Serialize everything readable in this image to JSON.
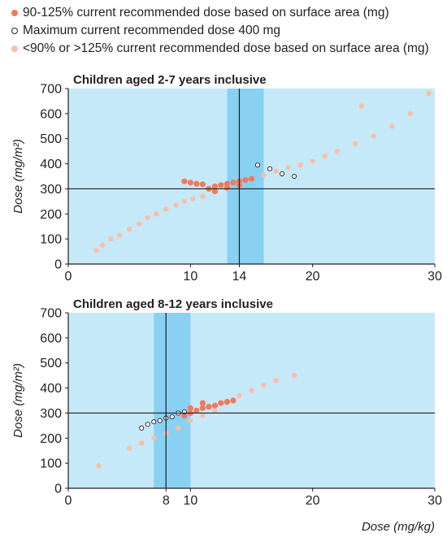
{
  "legend": [
    {
      "label": "90-125% current recommended dose based on surface area (mg)",
      "color": "#f4785a",
      "style": "filled-dark"
    },
    {
      "label": "Maximum current recommended dose 400 mg",
      "color": "#ffffff",
      "style": "open"
    },
    {
      "label": "<90% or >125% current recommended dose based on surface area (mg)",
      "color": "#f9bfa8",
      "style": "filled-light"
    }
  ],
  "colors": {
    "plot_bg": "#c6e9f9",
    "band": "#88d1f3",
    "in_range": "#f4785a",
    "out_range": "#f9bfa8",
    "max_dose": "#ffffff",
    "axis": "#231f20"
  },
  "chart_data": [
    {
      "type": "scatter",
      "title": "Children aged 2-7 years inclusive",
      "xlabel": "",
      "ylabel": "Dose (mg/m²)",
      "xlim": [
        0,
        30
      ],
      "ylim": [
        0,
        700
      ],
      "xticks": [
        0,
        10,
        14,
        20,
        30
      ],
      "yticks": [
        0,
        100,
        200,
        300,
        400,
        500,
        600,
        700
      ],
      "grid": false,
      "band_x": [
        13,
        16
      ],
      "ref_x": 14,
      "ref_y": 300,
      "series": [
        {
          "name": "<90% or >125% current recommended dose based on surface area (mg)",
          "points": [
            [
              2.3,
              55
            ],
            [
              2.8,
              75
            ],
            [
              3.5,
              100
            ],
            [
              4.2,
              115
            ],
            [
              5.0,
              140
            ],
            [
              5.8,
              160
            ],
            [
              6.5,
              185
            ],
            [
              7.2,
              200
            ],
            [
              8.0,
              220
            ],
            [
              8.8,
              235
            ],
            [
              9.5,
              250
            ],
            [
              10.2,
              260
            ],
            [
              11.0,
              270
            ],
            [
              12.0,
              290
            ],
            [
              13.0,
              300
            ],
            [
              14.0,
              320
            ],
            [
              15.0,
              340
            ],
            [
              16.0,
              355
            ],
            [
              17.0,
              370
            ],
            [
              18.0,
              385
            ],
            [
              19.0,
              395
            ],
            [
              20.0,
              410
            ],
            [
              21.0,
              430
            ],
            [
              22.0,
              450
            ],
            [
              23.5,
              480
            ],
            [
              25.0,
              510
            ],
            [
              26.5,
              550
            ],
            [
              28.0,
              600
            ],
            [
              29.5,
              680
            ],
            [
              24.0,
              630
            ]
          ]
        },
        {
          "name": "90-125% current recommended dose based on surface area (mg)",
          "points": [
            [
              9.5,
              330
            ],
            [
              10.0,
              325
            ],
            [
              10.5,
              320
            ],
            [
              11.0,
              318
            ],
            [
              11.5,
              300
            ],
            [
              12.0,
              310
            ],
            [
              12.5,
              315
            ],
            [
              13.0,
              320
            ],
            [
              13.5,
              325
            ],
            [
              14.0,
              330
            ],
            [
              14.5,
              335
            ],
            [
              15.0,
              340
            ],
            [
              12.0,
              290
            ],
            [
              13.0,
              305
            ],
            [
              14.0,
              315
            ]
          ]
        },
        {
          "name": "Maximum current recommended dose 400 mg",
          "points": [
            [
              15.5,
              395
            ],
            [
              16.5,
              380
            ],
            [
              17.5,
              360
            ],
            [
              18.5,
              350
            ]
          ]
        }
      ]
    },
    {
      "type": "scatter",
      "title": "Children aged 8-12 years inclusive",
      "xlabel": "Dose (mg/kg)",
      "ylabel": "Dose (mg/m²)",
      "xlim": [
        0,
        30
      ],
      "ylim": [
        0,
        700
      ],
      "xticks": [
        0,
        8,
        10,
        20,
        30
      ],
      "yticks": [
        0,
        100,
        200,
        300,
        400,
        500,
        600,
        700
      ],
      "grid": false,
      "band_x": [
        7,
        10
      ],
      "ref_x": 8,
      "ref_y": 300,
      "series": [
        {
          "name": "<90% or >125% current recommended dose based on surface area (mg)",
          "points": [
            [
              2.5,
              90
            ],
            [
              5.0,
              160
            ],
            [
              6.0,
              180
            ],
            [
              7.0,
              200
            ],
            [
              8.0,
              220
            ],
            [
              9.0,
              240
            ],
            [
              10.0,
              270
            ],
            [
              11.0,
              290
            ],
            [
              12.0,
              310
            ],
            [
              13.0,
              340
            ],
            [
              14.0,
              370
            ],
            [
              15.0,
              390
            ],
            [
              16.0,
              410
            ],
            [
              17.0,
              430
            ],
            [
              18.5,
              450
            ]
          ]
        },
        {
          "name": "90-125% current recommended dose based on surface area (mg)",
          "points": [
            [
              9.5,
              290
            ],
            [
              10.0,
              300
            ],
            [
              10.5,
              310
            ],
            [
              11.0,
              320
            ],
            [
              11.5,
              325
            ],
            [
              12.0,
              330
            ],
            [
              12.5,
              340
            ],
            [
              13.0,
              345
            ],
            [
              13.5,
              350
            ],
            [
              10.0,
              320
            ],
            [
              11.0,
              340
            ]
          ]
        },
        {
          "name": "Maximum current recommended dose 400 mg",
          "points": [
            [
              6.0,
              240
            ],
            [
              6.5,
              255
            ],
            [
              7.0,
              265
            ],
            [
              7.5,
              270
            ],
            [
              8.0,
              280
            ],
            [
              8.5,
              285
            ],
            [
              9.0,
              300
            ],
            [
              9.5,
              305
            ]
          ]
        }
      ]
    }
  ]
}
